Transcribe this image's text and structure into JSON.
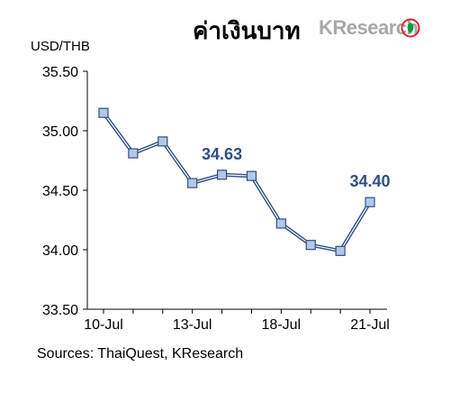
{
  "title": "ค่าเงินบาท",
  "brand": {
    "logo_text": "KResearch",
    "logo_color": "#9a9a9a",
    "mark_color": "#e2242a",
    "leaf_color": "#009a44"
  },
  "source_note": "Sources: ThaiQuest, KResearch",
  "colors": {
    "line": "#2e4f86",
    "marker_fill": "#b4c7e7",
    "marker_stroke": "#2e4f86",
    "label": "#2e4f86",
    "axis": "#000000"
  },
  "chart_data": {
    "type": "line",
    "ylabel": "USD/THB",
    "ylim": [
      33.5,
      35.5
    ],
    "yticks": [
      "35.50",
      "35.00",
      "34.50",
      "34.00",
      "33.50"
    ],
    "ytick_values": [
      35.5,
      35.0,
      34.5,
      34.0,
      33.5
    ],
    "x": [
      "10-Jul",
      "11-Jul",
      "12-Jul",
      "13-Jul",
      "14-Jul",
      "17-Jul",
      "18-Jul",
      "19-Jul",
      "20-Jul",
      "21-Jul"
    ],
    "xtick_labels": [
      "10-Jul",
      "13-Jul",
      "18-Jul",
      "21-Jul"
    ],
    "xtick_indices": [
      0,
      3,
      6,
      9
    ],
    "values": [
      35.15,
      34.81,
      34.91,
      34.56,
      34.63,
      34.62,
      34.22,
      34.04,
      33.99,
      34.4
    ],
    "data_labels": [
      {
        "index": 4,
        "text": "34.63"
      },
      {
        "index": 9,
        "text": "34.40"
      }
    ],
    "grid": false,
    "legend": "none"
  }
}
